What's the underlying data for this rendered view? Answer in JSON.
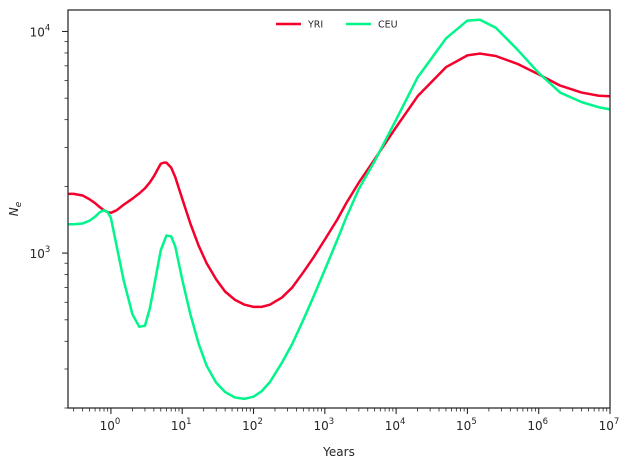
{
  "chart_data": {
    "type": "line",
    "title": "",
    "xlabel": "Years",
    "ylabel": "N_e",
    "xscale": "log",
    "yscale": "log",
    "xlim": [
      0.25,
      10000000
    ],
    "ylim": [
      200,
      12500
    ],
    "grid": false,
    "legend_position": "top-center",
    "x_tick_labels": [
      {
        "base": "10",
        "exp": "0"
      },
      {
        "base": "10",
        "exp": "1"
      },
      {
        "base": "10",
        "exp": "2"
      },
      {
        "base": "10",
        "exp": "3"
      },
      {
        "base": "10",
        "exp": "4"
      },
      {
        "base": "10",
        "exp": "5"
      },
      {
        "base": "10",
        "exp": "6"
      },
      {
        "base": "10",
        "exp": "7"
      }
    ],
    "y_tick_labels": [
      {
        "base": "10",
        "exp": "3"
      },
      {
        "base": "10",
        "exp": "4"
      }
    ],
    "series": [
      {
        "name": "YRI",
        "color": "#f5002d",
        "x": [
          0.25,
          0.3,
          0.4,
          0.5,
          0.6,
          0.7,
          0.8,
          0.9,
          1.0,
          1.2,
          1.5,
          2,
          2.5,
          3,
          3.5,
          4,
          4.5,
          5,
          5.5,
          6,
          7,
          8,
          10,
          13,
          17,
          22,
          30,
          40,
          55,
          75,
          100,
          130,
          170,
          250,
          350,
          500,
          700,
          1000,
          1500,
          2000,
          3000,
          5000,
          10000,
          20000,
          50000,
          100000,
          150000,
          250000,
          500000,
          1000000,
          2000000,
          4000000,
          7000000,
          10000000
        ],
        "y": [
          1850,
          1850,
          1820,
          1750,
          1680,
          1610,
          1560,
          1530,
          1520,
          1560,
          1650,
          1760,
          1860,
          1960,
          2080,
          2220,
          2380,
          2530,
          2560,
          2560,
          2430,
          2200,
          1760,
          1360,
          1080,
          900,
          760,
          670,
          615,
          585,
          572,
          572,
          585,
          630,
          700,
          820,
          960,
          1150,
          1420,
          1680,
          2080,
          2650,
          3700,
          5100,
          6900,
          7800,
          7950,
          7750,
          7150,
          6400,
          5700,
          5300,
          5130,
          5100
        ]
      },
      {
        "name": "CEU",
        "color": "#00f58a",
        "x": [
          0.25,
          0.3,
          0.4,
          0.5,
          0.6,
          0.7,
          0.8,
          0.9,
          1.0,
          1.2,
          1.5,
          2.0,
          2.5,
          3.0,
          3.5,
          4,
          5,
          6,
          7,
          8,
          10,
          13,
          17,
          22,
          30,
          40,
          55,
          75,
          100,
          130,
          170,
          250,
          350,
          500,
          700,
          1000,
          1500,
          2000,
          3000,
          5000,
          10000,
          20000,
          50000,
          100000,
          150000,
          250000,
          500000,
          1000000,
          2000000,
          4000000,
          7000000,
          10000000
        ],
        "y": [
          1350,
          1350,
          1360,
          1400,
          1460,
          1530,
          1560,
          1530,
          1440,
          1080,
          760,
          530,
          465,
          470,
          560,
          700,
          1030,
          1200,
          1190,
          1070,
          760,
          530,
          390,
          310,
          260,
          236,
          223,
          220,
          225,
          238,
          262,
          320,
          390,
          500,
          640,
          840,
          1150,
          1450,
          1950,
          2600,
          4000,
          6200,
          9300,
          11200,
          11300,
          10400,
          8300,
          6500,
          5300,
          4800,
          4550,
          4450
        ]
      }
    ]
  }
}
